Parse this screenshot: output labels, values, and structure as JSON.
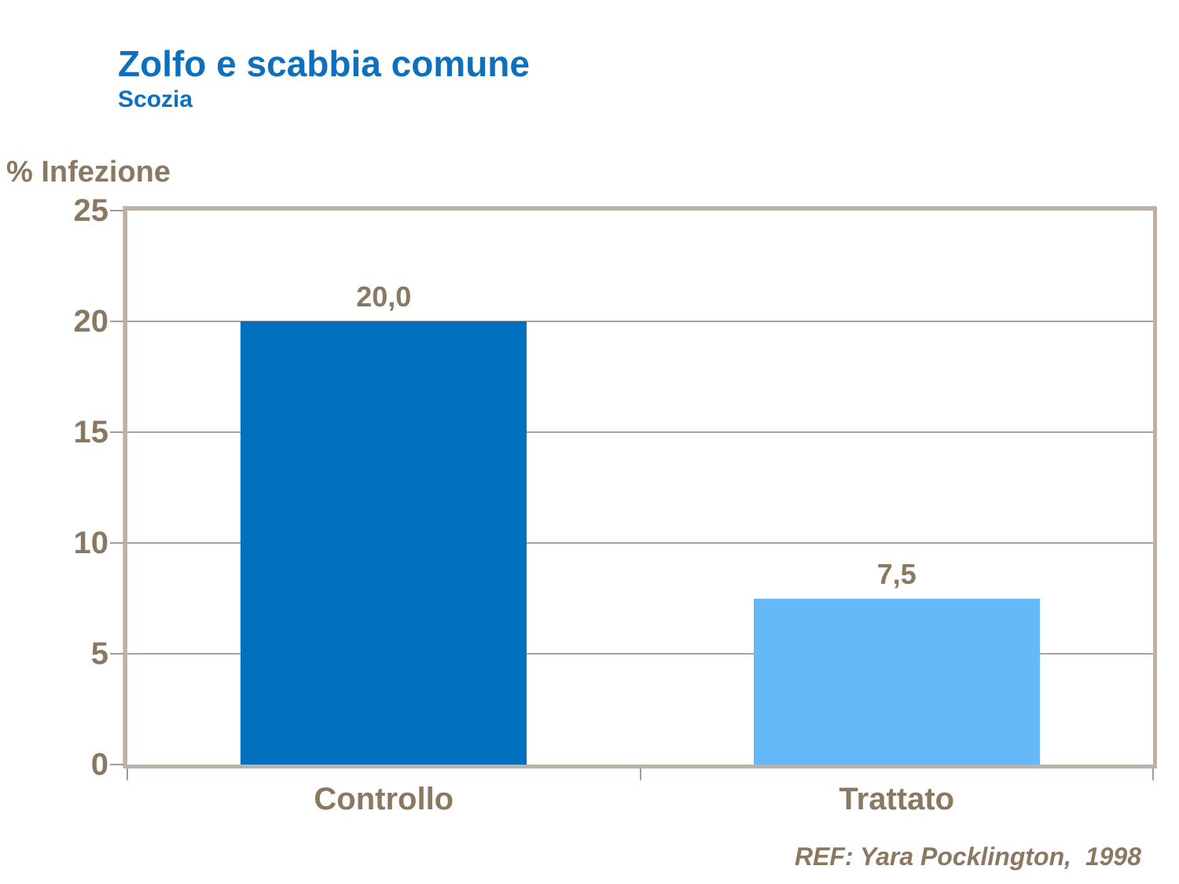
{
  "slide": {
    "title": "Zolfo e scabbia comune",
    "subtitle": "Scozia",
    "reference": "REF: Yara Pocklington,  1998"
  },
  "chart_data": {
    "type": "bar",
    "title": "Zolfo e scabbia comune",
    "subtitle": "Scozia",
    "ylabel": "% Infezione",
    "xlabel": "",
    "categories": [
      "Controllo",
      "Trattato"
    ],
    "values": [
      20.0,
      7.5
    ],
    "value_labels": [
      "20,0",
      "7,5"
    ],
    "yticks": [
      0,
      5,
      10,
      15,
      20,
      25
    ],
    "ylim": [
      0,
      25
    ],
    "grid": "horizontal",
    "legend": "none",
    "bar_colors": [
      "#0071BF",
      "#66B9F9"
    ],
    "annotation": "REF: Yara Pocklington,  1998"
  },
  "colors": {
    "title_blue": "#0C70BE",
    "text_brown": "#8A7960",
    "frame_tan": "#BDB0A4",
    "gridline": "#ABA49A",
    "tick": "#A79B8E",
    "background": "#FFFFFF"
  }
}
